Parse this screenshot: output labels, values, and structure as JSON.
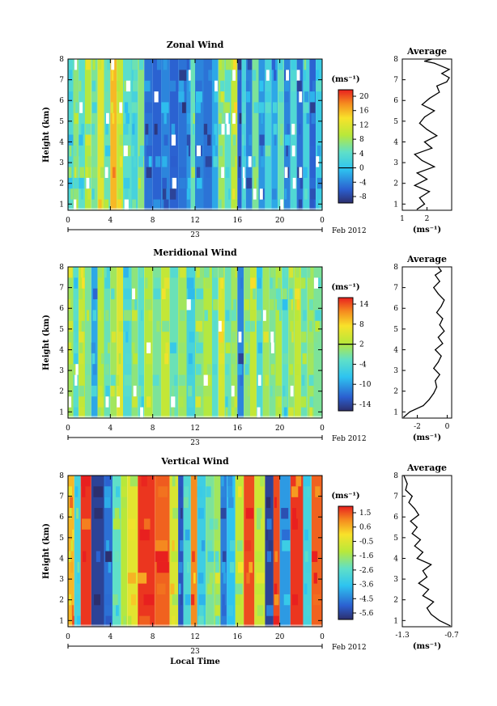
{
  "chart_data": [
    {
      "type": "heatmap",
      "title": "Zonal Wind",
      "ylabel": "Height (km)",
      "xlabel": "",
      "x_ticks": [
        "0",
        "4",
        "8",
        "12",
        "16",
        "20",
        "0"
      ],
      "xlim": [
        0,
        24
      ],
      "y_ticks": [
        "1",
        "2",
        "3",
        "4",
        "5",
        "6",
        "7",
        "8"
      ],
      "ylim": [
        0.7,
        8
      ],
      "date_day": "23",
      "date_label": "Feb 2012",
      "unit": "(ms⁻¹)",
      "colorbar": {
        "ticks": [
          "20",
          "16",
          "12",
          "8",
          "4",
          "0",
          "-4",
          "-8"
        ],
        "min": -10,
        "max": 22
      },
      "bands": [
        {
          "start": 0.0,
          "value": 3
        },
        {
          "start": 0.5,
          "value": 7
        },
        {
          "start": 1.0,
          "value": 4
        },
        {
          "start": 1.6,
          "value": 9
        },
        {
          "start": 2.2,
          "value": 6
        },
        {
          "start": 2.8,
          "value": 12
        },
        {
          "start": 3.4,
          "value": 5
        },
        {
          "start": 4.0,
          "value": 16
        },
        {
          "start": 4.6,
          "value": 10
        },
        {
          "start": 5.2,
          "value": 4
        },
        {
          "start": 6.0,
          "value": 2
        },
        {
          "start": 6.6,
          "value": 7
        },
        {
          "start": 7.2,
          "value": -5
        },
        {
          "start": 8.0,
          "value": -6
        },
        {
          "start": 8.8,
          "value": -4
        },
        {
          "start": 9.6,
          "value": -6
        },
        {
          "start": 10.4,
          "value": -5
        },
        {
          "start": 11.2,
          "value": -3
        },
        {
          "start": 11.6,
          "value": 5
        },
        {
          "start": 12.0,
          "value": -4
        },
        {
          "start": 12.8,
          "value": -5
        },
        {
          "start": 13.6,
          "value": -2
        },
        {
          "start": 14.2,
          "value": 8
        },
        {
          "start": 14.8,
          "value": 4
        },
        {
          "start": 15.4,
          "value": 10
        },
        {
          "start": 16.0,
          "value": -6
        },
        {
          "start": 16.4,
          "value": 2
        },
        {
          "start": 16.8,
          "value": -4
        },
        {
          "start": 17.4,
          "value": 6
        },
        {
          "start": 18.0,
          "value": -3
        },
        {
          "start": 18.6,
          "value": 2
        },
        {
          "start": 19.2,
          "value": -2
        },
        {
          "start": 19.8,
          "value": 5
        },
        {
          "start": 20.4,
          "value": -4
        },
        {
          "start": 21.0,
          "value": 3
        },
        {
          "start": 21.6,
          "value": -5
        },
        {
          "start": 22.2,
          "value": 2
        },
        {
          "start": 22.8,
          "value": -6
        },
        {
          "start": 23.4,
          "value": 1
        }
      ],
      "profile": {
        "title": "Average",
        "x_ticks": [
          "1",
          "2"
        ],
        "xlim": [
          1,
          3
        ],
        "xlabel": "(ms⁻¹)",
        "ylim": [
          0.7,
          8
        ],
        "y_ticks": [
          "1",
          "2",
          "3",
          "4",
          "5",
          "6",
          "7",
          "8"
        ],
        "x": [
          1.6,
          1.9,
          1.7,
          2.1,
          1.5,
          2.0,
          1.6,
          2.3,
          1.8,
          1.5,
          2.2,
          1.9,
          2.4,
          2.0,
          1.7,
          1.9,
          2.3,
          1.8,
          2.1,
          2.5,
          2.4,
          2.8,
          2.9,
          2.6,
          2.9,
          2.5,
          2.3,
          1.9,
          2.2
        ],
        "y": [
          0.75,
          1.0,
          1.3,
          1.6,
          1.9,
          2.2,
          2.5,
          2.8,
          3.1,
          3.4,
          3.7,
          4.0,
          4.3,
          4.6,
          4.9,
          5.2,
          5.5,
          5.8,
          6.1,
          6.4,
          6.7,
          6.9,
          7.1,
          7.3,
          7.5,
          7.7,
          7.8,
          7.9,
          8.0
        ]
      }
    },
    {
      "type": "heatmap",
      "title": "Meridional Wind",
      "ylabel": "Height (km)",
      "xlabel": "",
      "x_ticks": [
        "0",
        "4",
        "8",
        "12",
        "16",
        "20",
        "0"
      ],
      "xlim": [
        0,
        24
      ],
      "y_ticks": [
        "1",
        "2",
        "3",
        "4",
        "5",
        "6",
        "7",
        "8"
      ],
      "ylim": [
        0.7,
        8
      ],
      "date_day": "23",
      "date_label": "Feb 2012",
      "unit": "(ms⁻¹)",
      "colorbar": {
        "ticks": [
          "14",
          "8",
          "2",
          "-4",
          "-10",
          "-14"
        ],
        "min": -16,
        "max": 16
      },
      "bands": [
        {
          "start": 0.0,
          "value": 2
        },
        {
          "start": 0.5,
          "value": -2
        },
        {
          "start": 1.0,
          "value": 4
        },
        {
          "start": 1.6,
          "value": 0
        },
        {
          "start": 2.2,
          "value": -8
        },
        {
          "start": 2.8,
          "value": 3
        },
        {
          "start": 3.4,
          "value": -1
        },
        {
          "start": 4.0,
          "value": 2
        },
        {
          "start": 4.6,
          "value": 6
        },
        {
          "start": 5.2,
          "value": -3
        },
        {
          "start": 6.0,
          "value": 1
        },
        {
          "start": 6.6,
          "value": -2
        },
        {
          "start": 7.2,
          "value": 3
        },
        {
          "start": 8.0,
          "value": 0
        },
        {
          "start": 8.8,
          "value": 4
        },
        {
          "start": 9.6,
          "value": -1
        },
        {
          "start": 10.4,
          "value": 2
        },
        {
          "start": 11.2,
          "value": -4
        },
        {
          "start": 12.0,
          "value": 1
        },
        {
          "start": 12.8,
          "value": 3
        },
        {
          "start": 13.6,
          "value": -2
        },
        {
          "start": 14.2,
          "value": 5
        },
        {
          "start": 14.8,
          "value": -1
        },
        {
          "start": 15.4,
          "value": 2
        },
        {
          "start": 16.0,
          "value": -10
        },
        {
          "start": 16.6,
          "value": 1
        },
        {
          "start": 17.2,
          "value": 4
        },
        {
          "start": 17.8,
          "value": -3
        },
        {
          "start": 18.4,
          "value": 2
        },
        {
          "start": 19.0,
          "value": 0
        },
        {
          "start": 19.6,
          "value": 3
        },
        {
          "start": 20.2,
          "value": -2
        },
        {
          "start": 20.8,
          "value": 1
        },
        {
          "start": 21.4,
          "value": 4
        },
        {
          "start": 22.0,
          "value": -1
        },
        {
          "start": 22.6,
          "value": 2
        },
        {
          "start": 23.2,
          "value": 0
        }
      ],
      "profile": {
        "title": "Average",
        "x_ticks": [
          "-2",
          "0"
        ],
        "xlim": [
          -3,
          0.3
        ],
        "xlabel": "(ms⁻¹)",
        "ylim": [
          0.7,
          8
        ],
        "y_ticks": [
          "1",
          "2",
          "3",
          "4",
          "5",
          "6",
          "7",
          "8"
        ],
        "x": [
          -2.9,
          -2.5,
          -1.6,
          -1.2,
          -0.9,
          -0.7,
          -0.8,
          -0.5,
          -0.9,
          -0.6,
          -0.4,
          -0.8,
          -0.3,
          -0.6,
          -0.2,
          -0.5,
          -0.3,
          -0.7,
          -0.4,
          -0.2,
          -0.6,
          -0.9,
          -0.5,
          -0.8,
          -0.4,
          -0.6
        ],
        "y": [
          0.75,
          1.0,
          1.3,
          1.6,
          1.9,
          2.2,
          2.5,
          2.8,
          3.1,
          3.4,
          3.7,
          4.0,
          4.3,
          4.6,
          4.9,
          5.2,
          5.5,
          5.8,
          6.1,
          6.4,
          6.7,
          7.0,
          7.3,
          7.6,
          7.8,
          8.0
        ]
      }
    },
    {
      "type": "heatmap",
      "title": "Vertical Wind",
      "ylabel": "Height (km)",
      "xlabel": "Local Time",
      "x_ticks": [
        "0",
        "4",
        "8",
        "12",
        "16",
        "20",
        "0"
      ],
      "xlim": [
        0,
        24
      ],
      "y_ticks": [
        "1",
        "2",
        "3",
        "4",
        "5",
        "6",
        "7",
        "8"
      ],
      "ylim": [
        0.7,
        8
      ],
      "date_day": "23",
      "date_label": "Feb 2012",
      "unit": "(ms⁻¹)",
      "colorbar": {
        "ticks": [
          "1.5",
          "0.6",
          "-0.5",
          "-1.6",
          "-2.6",
          "-3.6",
          "-4.5",
          "-5.6"
        ],
        "min": -6,
        "max": 2
      },
      "bands": [
        {
          "start": 0.0,
          "value": 0.5
        },
        {
          "start": 0.6,
          "value": -3.0
        },
        {
          "start": 1.2,
          "value": 1.8
        },
        {
          "start": 2.2,
          "value": -5.6
        },
        {
          "start": 3.4,
          "value": -4.8
        },
        {
          "start": 4.2,
          "value": -2.4
        },
        {
          "start": 5.0,
          "value": -1.2
        },
        {
          "start": 5.6,
          "value": -0.4
        },
        {
          "start": 6.6,
          "value": 1.8
        },
        {
          "start": 8.2,
          "value": 1.4
        },
        {
          "start": 9.6,
          "value": -0.6
        },
        {
          "start": 10.4,
          "value": -5.2
        },
        {
          "start": 10.9,
          "value": -2.8
        },
        {
          "start": 11.6,
          "value": 1.0
        },
        {
          "start": 12.2,
          "value": -3.2
        },
        {
          "start": 13.0,
          "value": -2.0
        },
        {
          "start": 13.8,
          "value": -1.5
        },
        {
          "start": 14.4,
          "value": -4.6
        },
        {
          "start": 15.0,
          "value": -3.6
        },
        {
          "start": 15.8,
          "value": -1.0
        },
        {
          "start": 16.6,
          "value": 1.6
        },
        {
          "start": 17.6,
          "value": -0.8
        },
        {
          "start": 18.6,
          "value": -5.6
        },
        {
          "start": 19.4,
          "value": 1.6
        },
        {
          "start": 20.0,
          "value": -4.2
        },
        {
          "start": 21.0,
          "value": 1.8
        },
        {
          "start": 22.2,
          "value": -3.0
        },
        {
          "start": 23.0,
          "value": 1.4
        }
      ],
      "profile": {
        "title": "Average",
        "x_ticks": [
          "-1.3",
          "-0.7"
        ],
        "xlim": [
          -1.3,
          -0.7
        ],
        "xlabel": "(ms⁻¹)",
        "ylim": [
          0.7,
          8
        ],
        "y_ticks": [
          "1",
          "2",
          "3",
          "4",
          "5",
          "6",
          "7",
          "8"
        ],
        "x": [
          -0.72,
          -0.85,
          -0.95,
          -1.0,
          -0.92,
          -1.05,
          -0.98,
          -1.1,
          -1.0,
          -1.05,
          -0.95,
          -1.12,
          -1.05,
          -1.15,
          -1.08,
          -1.18,
          -1.12,
          -1.2,
          -1.1,
          -1.15,
          -1.22,
          -1.18,
          -1.26,
          -1.24,
          -1.28
        ],
        "y": [
          0.75,
          1.0,
          1.3,
          1.6,
          1.9,
          2.2,
          2.5,
          2.8,
          3.1,
          3.4,
          3.7,
          4.0,
          4.3,
          4.6,
          4.9,
          5.2,
          5.5,
          5.8,
          6.1,
          6.4,
          6.7,
          7.0,
          7.3,
          7.6,
          8.0
        ]
      }
    }
  ]
}
